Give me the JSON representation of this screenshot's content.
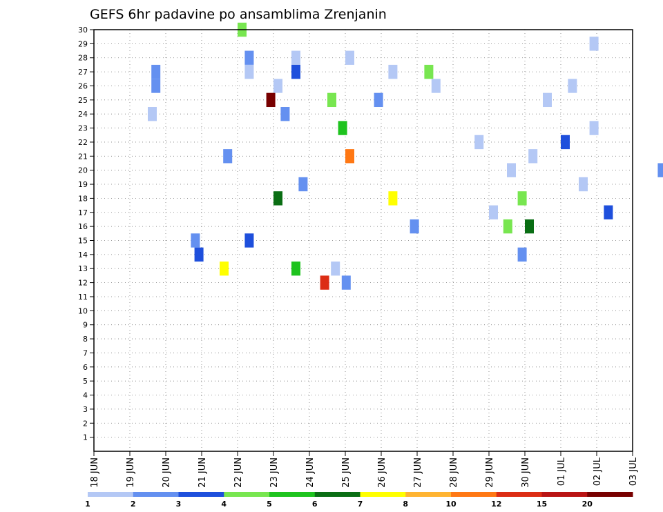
{
  "chart_data": {
    "type": "heatmap",
    "title": "GEFS 6hr padavine po ansamblima Zrenjanin",
    "xlabel": "",
    "ylabel": "",
    "y_ticks": [
      "1",
      "2",
      "3",
      "4",
      "5",
      "6",
      "7",
      "8",
      "9",
      "10",
      "11",
      "12",
      "13",
      "14",
      "15",
      "16",
      "17",
      "18",
      "19",
      "20",
      "21",
      "22",
      "23",
      "24",
      "25",
      "26",
      "27",
      "28",
      "29",
      "30"
    ],
    "x_ticks": [
      "18 JUN",
      "19 JUN",
      "20 JUN",
      "21 JUN",
      "22 JUN",
      "23 JUN",
      "24 JUN",
      "25 JUN",
      "26 JUN",
      "27 JUN",
      "28 JUN",
      "29 JUN",
      "30 JUN",
      "01 JUL",
      "02 JUL",
      "03 JUL"
    ],
    "x_range_days": [
      0,
      15
    ],
    "y_range": [
      0,
      30
    ],
    "grid": true,
    "colorbar": {
      "tick_labels": [
        "1",
        "2",
        "3",
        "4",
        "5",
        "6",
        "7",
        "8",
        "10",
        "12",
        "15",
        "20"
      ],
      "colors": [
        "#b4c8f5",
        "#6490f0",
        "#1e4fdc",
        "#78e650",
        "#1ec31e",
        "#0a6e14",
        "#ffff00",
        "#ffb432",
        "#ff7814",
        "#dc2d14",
        "#b91414",
        "#780000"
      ]
    },
    "cells": [
      [
        0.4,
        30,
        3
      ],
      [
        1.38,
        29,
        0
      ],
      [
        0.7,
        28,
        0
      ],
      [
        0.42,
        28,
        1
      ],
      [
        0.55,
        28,
        0
      ],
      [
        0.16,
        27,
        1
      ],
      [
        0.42,
        27,
        0
      ],
      [
        0.55,
        27,
        2
      ],
      [
        0.82,
        27,
        0
      ],
      [
        0.92,
        27,
        3
      ],
      [
        0.5,
        26,
        0
      ],
      [
        0.16,
        26,
        1
      ],
      [
        1.32,
        26,
        0
      ],
      [
        0.94,
        26,
        0
      ],
      [
        0.65,
        25,
        3
      ],
      [
        0.48,
        25,
        11
      ],
      [
        0.52,
        24,
        1
      ],
      [
        0.15,
        24,
        0
      ],
      [
        0.78,
        25,
        1
      ],
      [
        1.25,
        25,
        0
      ],
      [
        0.68,
        23,
        4
      ],
      [
        1.38,
        23,
        0
      ],
      [
        1.06,
        22,
        0
      ],
      [
        1.3,
        22,
        2
      ],
      [
        1.21,
        21,
        0
      ],
      [
        0.36,
        21,
        1
      ],
      [
        0.7,
        21,
        8
      ],
      [
        1.15,
        20,
        0
      ],
      [
        1.57,
        20,
        1
      ],
      [
        1.35,
        19,
        0
      ],
      [
        0.57,
        19,
        1
      ],
      [
        1.18,
        18,
        3
      ],
      [
        0.5,
        18,
        5
      ],
      [
        0.82,
        18,
        6
      ],
      [
        1.1,
        17,
        0
      ],
      [
        1.42,
        17,
        2
      ],
      [
        1.2,
        16,
        5
      ],
      [
        1.14,
        16,
        3
      ],
      [
        0.88,
        16,
        1
      ],
      [
        0.27,
        15,
        1
      ],
      [
        0.42,
        15,
        2
      ],
      [
        1.18,
        14,
        1
      ],
      [
        0.28,
        14,
        2
      ],
      [
        0.66,
        13,
        0
      ],
      [
        0.35,
        13,
        6
      ],
      [
        0.55,
        13,
        4
      ],
      [
        0.69,
        12,
        1
      ],
      [
        0.63,
        12,
        9
      ]
    ]
  }
}
